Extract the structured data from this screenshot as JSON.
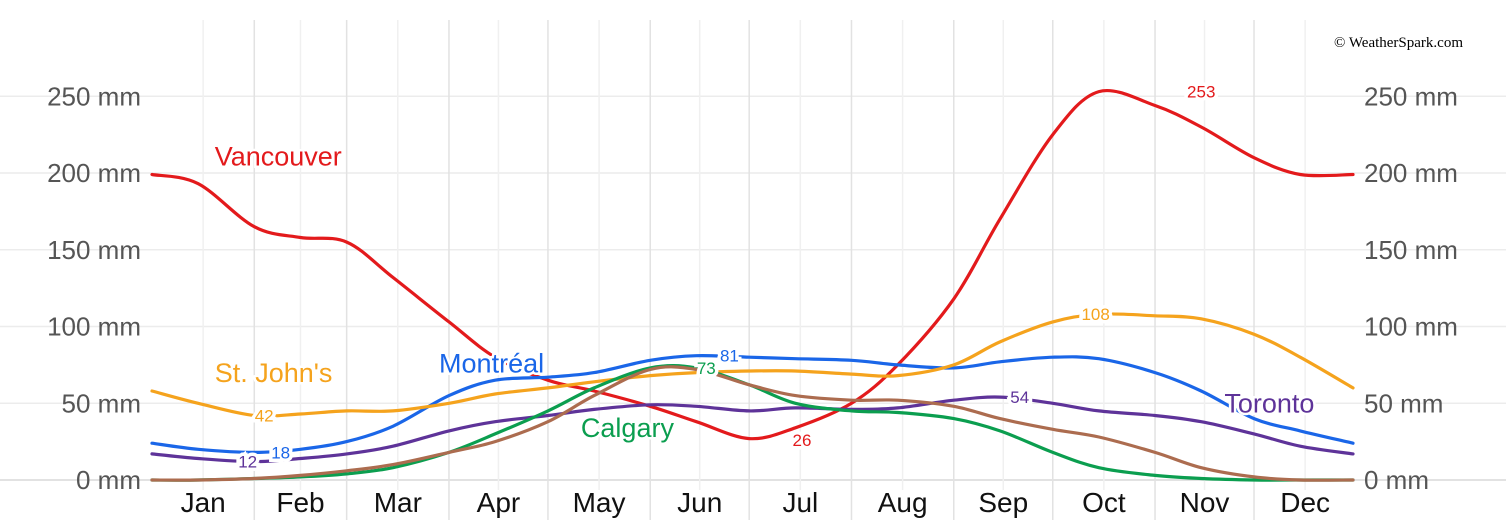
{
  "credit": "© WeatherSpark.com",
  "chart_data": {
    "type": "line",
    "ylim": [
      0,
      290
    ],
    "yticks": [
      0,
      50,
      100,
      150,
      200,
      250
    ],
    "yunit": "mm",
    "grid": true,
    "months": [
      "Jan",
      "Feb",
      "Mar",
      "Apr",
      "May",
      "Jun",
      "Jul",
      "Aug",
      "Sep",
      "Oct",
      "Nov",
      "Dec"
    ],
    "x_doy": [
      1,
      15,
      32,
      46,
      60,
      74,
      91,
      105,
      121,
      135,
      152,
      166,
      182,
      196,
      213,
      227,
      244,
      258,
      274,
      288,
      305,
      319,
      335,
      349,
      365
    ],
    "series": [
      {
        "name": "Vancouver",
        "color": "#e31a1c",
        "values": [
          199,
          193,
          165,
          158,
          155,
          132,
          103,
          80,
          65,
          58,
          48,
          38,
          27,
          34,
          50,
          75,
          118,
          170,
          225,
          253,
          244,
          230,
          210,
          199,
          199
        ],
        "label_pos": [
          20,
          205
        ],
        "annotations": [
          {
            "doy": 198,
            "value": 26,
            "text": "26"
          },
          {
            "doy": 319,
            "value": 253,
            "text": "253"
          }
        ]
      },
      {
        "name": "Montréal",
        "color": "#1a66e8",
        "values": [
          24,
          20,
          18,
          20,
          25,
          35,
          55,
          65,
          67,
          70,
          78,
          81,
          80,
          79,
          78,
          75,
          73,
          77,
          80,
          79,
          70,
          58,
          40,
          32,
          24
        ],
        "label_pos": [
          88,
          70
        ],
        "annotations": [
          {
            "doy": 40,
            "value": 18,
            "text": "18"
          },
          {
            "doy": 176,
            "value": 81,
            "text": "81"
          }
        ]
      },
      {
        "name": "St. John's",
        "color": "#f5a31d",
        "values": [
          58,
          50,
          42,
          43,
          45,
          45,
          50,
          56,
          60,
          64,
          68,
          70,
          71,
          71,
          69,
          68,
          75,
          90,
          103,
          108,
          107,
          105,
          95,
          80,
          60
        ],
        "label_pos": [
          20,
          64
        ],
        "annotations": [
          {
            "doy": 35,
            "value": 42,
            "text": "42"
          },
          {
            "doy": 287,
            "value": 108,
            "text": "108"
          }
        ]
      },
      {
        "name": "Toronto",
        "color": "#5e3399",
        "values": [
          17,
          14,
          12,
          14,
          17,
          22,
          32,
          38,
          42,
          46,
          49,
          48,
          45,
          47,
          46,
          47,
          52,
          54,
          50,
          45,
          42,
          38,
          30,
          22,
          17
        ],
        "label_pos": [
          326,
          44
        ],
        "annotations": [
          {
            "doy": 30,
            "value": 12,
            "text": "12"
          },
          {
            "doy": 264,
            "value": 54,
            "text": "54"
          }
        ]
      },
      {
        "name": "Calgary",
        "color": "#0b9e4f",
        "values": [
          0,
          0,
          1,
          2,
          4,
          8,
          18,
          30,
          45,
          60,
          73,
          73,
          62,
          50,
          45,
          44,
          40,
          32,
          18,
          8,
          3,
          1,
          0,
          0,
          0
        ],
        "label_pos": [
          131,
          28
        ],
        "annotations": [
          {
            "doy": 169,
            "value": 73,
            "text": "73"
          }
        ]
      },
      {
        "name": "",
        "color": "#ac6c4f",
        "values": [
          0,
          0,
          1,
          3,
          6,
          10,
          18,
          25,
          38,
          55,
          72,
          72,
          62,
          55,
          52,
          52,
          48,
          40,
          33,
          28,
          18,
          8,
          2,
          0,
          0
        ],
        "label_pos": null,
        "annotations": []
      }
    ]
  }
}
